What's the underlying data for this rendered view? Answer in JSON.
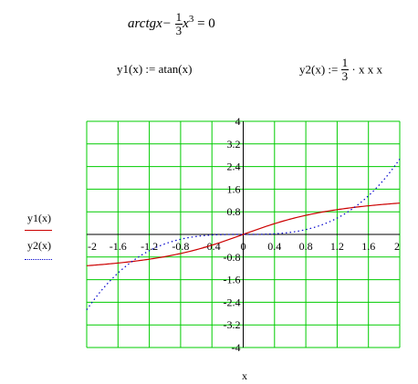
{
  "equation": {
    "fn": "arctgx",
    "minus": "−",
    "frac_num": "1",
    "frac_den": "3",
    "var": "x",
    "power": "3",
    "rhs": "= 0"
  },
  "defs": {
    "y1_lhs": "y1(x) := atan(x)",
    "y2_lhs": "y2(x) :=",
    "y2_num": "1",
    "y2_den": "3",
    "y2_rest": "· x x x"
  },
  "chart_data": {
    "type": "line",
    "xlabel": "x",
    "xlim": [
      -2,
      2
    ],
    "ylim": [
      -4,
      4
    ],
    "x_ticks": [
      "-2",
      "-1.6",
      "-1.2",
      "-0.8",
      "-0.4",
      "0",
      "0.4",
      "0.8",
      "1.2",
      "1.6",
      "2"
    ],
    "y_ticks": [
      "4",
      "3.2",
      "2.4",
      "1.6",
      "0.8",
      "0",
      "-0.8",
      "-1.6",
      "-2.4",
      "-3.2",
      "-4"
    ],
    "grid": true,
    "grid_color": "#00cc00",
    "series": [
      {
        "name": "y1(x)",
        "function": "atan(x)",
        "color": "#cc0000",
        "style": "solid"
      },
      {
        "name": "y2(x)",
        "function": "(1/3)·x·x·x",
        "color": "#0000cc",
        "style": "dotted"
      }
    ]
  }
}
